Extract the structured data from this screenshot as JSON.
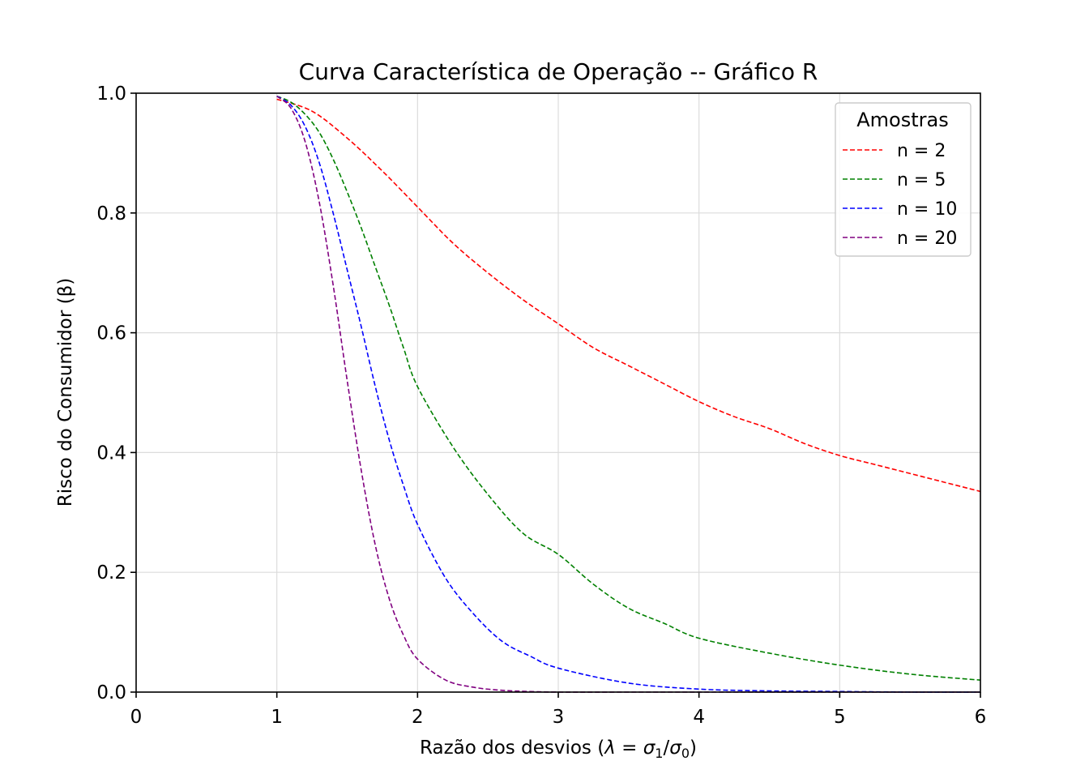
{
  "chart_data": {
    "type": "line",
    "title": "Curva Característica de Operação -- Gráfico R",
    "xlabel_prefix": "Razão dos desvios (",
    "xlabel_lambda": "λ",
    "xlabel_eq": " = ",
    "xlabel_sigma": "σ",
    "xlabel_sub1": "1",
    "xlabel_slash": "/",
    "xlabel_sub0": "0",
    "xlabel_suffix": ")",
    "ylabel": "Risco do Consumidor (β)",
    "xlim": [
      0,
      6
    ],
    "ylim": [
      0,
      1.0
    ],
    "xticks": [
      0,
      1,
      2,
      3,
      4,
      5,
      6
    ],
    "xtick_labels": [
      "0",
      "1",
      "2",
      "3",
      "4",
      "5",
      "6"
    ],
    "yticks": [
      0.0,
      0.2,
      0.4,
      0.6,
      0.8,
      1.0
    ],
    "ytick_labels": [
      "0.0",
      "0.2",
      "0.4",
      "0.6",
      "0.8",
      "1.0"
    ],
    "grid": true,
    "legend": {
      "title": "Amostras",
      "placement": "top-right"
    },
    "series": [
      {
        "name": "n = 2",
        "color": "#ff0000",
        "x": [
          1.0,
          1.25,
          1.5,
          1.75,
          2.0,
          2.25,
          2.5,
          2.75,
          3.0,
          3.25,
          3.5,
          3.75,
          4.0,
          4.25,
          4.5,
          4.75,
          5.0,
          5.25,
          5.5,
          5.75,
          6.0
        ],
        "y": [
          0.99,
          0.97,
          0.925,
          0.87,
          0.81,
          0.75,
          0.7,
          0.655,
          0.615,
          0.575,
          0.545,
          0.515,
          0.485,
          0.46,
          0.44,
          0.415,
          0.395,
          0.38,
          0.365,
          0.35,
          0.335
        ]
      },
      {
        "name": "n = 5",
        "color": "#008000",
        "x": [
          1.0,
          1.1,
          1.2,
          1.3,
          1.4,
          1.5,
          1.6,
          1.7,
          1.8,
          1.9,
          2.0,
          2.25,
          2.5,
          2.75,
          3.0,
          3.25,
          3.5,
          3.75,
          4.0,
          4.5,
          5.0,
          5.5,
          6.0
        ],
        "y": [
          0.995,
          0.985,
          0.965,
          0.935,
          0.89,
          0.835,
          0.775,
          0.71,
          0.645,
          0.575,
          0.51,
          0.41,
          0.33,
          0.265,
          0.23,
          0.18,
          0.14,
          0.115,
          0.09,
          0.065,
          0.045,
          0.03,
          0.02
        ]
      },
      {
        "name": "n = 10",
        "color": "#0000ff",
        "x": [
          1.0,
          1.1,
          1.2,
          1.3,
          1.4,
          1.5,
          1.6,
          1.7,
          1.8,
          1.9,
          2.0,
          2.2,
          2.4,
          2.6,
          2.8,
          3.0,
          3.5,
          4.0,
          4.5,
          5.0,
          5.5,
          6.0
        ],
        "y": [
          0.995,
          0.98,
          0.945,
          0.885,
          0.8,
          0.705,
          0.61,
          0.51,
          0.42,
          0.345,
          0.28,
          0.19,
          0.13,
          0.085,
          0.06,
          0.04,
          0.015,
          0.005,
          0.002,
          0.001,
          0.0,
          0.0
        ]
      },
      {
        "name": "n = 20",
        "color": "#800080",
        "x": [
          1.0,
          1.1,
          1.2,
          1.3,
          1.4,
          1.5,
          1.6,
          1.7,
          1.8,
          1.9,
          2.0,
          2.2,
          2.4,
          2.6,
          2.8,
          3.0,
          3.5,
          4.0,
          5.0,
          6.0
        ],
        "y": [
          0.995,
          0.975,
          0.92,
          0.82,
          0.68,
          0.52,
          0.37,
          0.245,
          0.155,
          0.095,
          0.055,
          0.02,
          0.008,
          0.003,
          0.001,
          0.0,
          0.0,
          0.0,
          0.0,
          0.0
        ]
      }
    ]
  }
}
